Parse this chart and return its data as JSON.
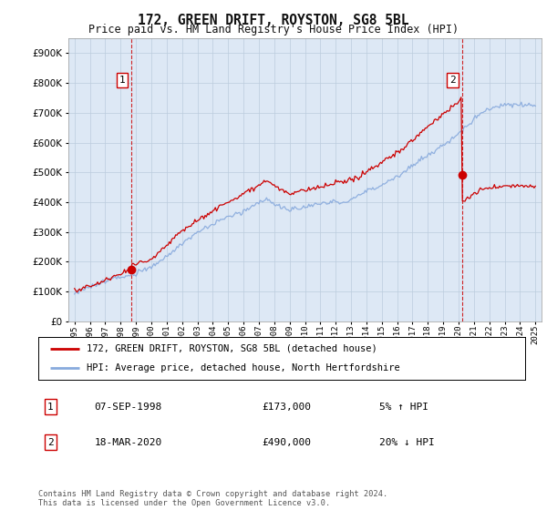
{
  "title": "172, GREEN DRIFT, ROYSTON, SG8 5BL",
  "subtitle": "Price paid vs. HM Land Registry's House Price Index (HPI)",
  "ytick_values": [
    0,
    100000,
    200000,
    300000,
    400000,
    500000,
    600000,
    700000,
    800000,
    900000
  ],
  "ylim": [
    0,
    950000
  ],
  "x_start_year": 1995,
  "x_end_year": 2025,
  "sale1_date": 1998.69,
  "sale1_price": 173000,
  "sale2_date": 2020.21,
  "sale2_price": 490000,
  "house_color": "#cc0000",
  "hpi_color": "#88aadd",
  "vline_color": "#cc0000",
  "plot_bg_color": "#dde8f5",
  "legend_house": "172, GREEN DRIFT, ROYSTON, SG8 5BL (detached house)",
  "legend_hpi": "HPI: Average price, detached house, North Hertfordshire",
  "table_row1": [
    "1",
    "07-SEP-1998",
    "£173,000",
    "5% ↑ HPI"
  ],
  "table_row2": [
    "2",
    "18-MAR-2020",
    "£490,000",
    "20% ↓ HPI"
  ],
  "footer": "Contains HM Land Registry data © Crown copyright and database right 2024.\nThis data is licensed under the Open Government Licence v3.0.",
  "background_color": "#ffffff",
  "grid_color": "#bbccdd"
}
